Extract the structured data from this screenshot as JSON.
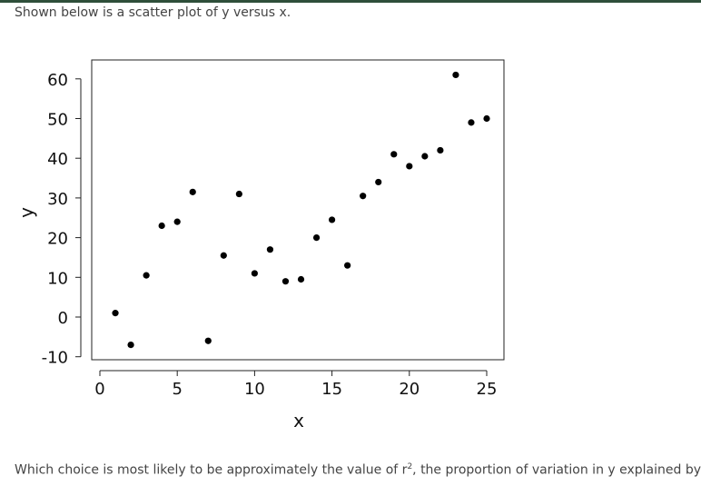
{
  "header": {
    "intro_text": "Shown below is a scatter plot of y versus x."
  },
  "question": {
    "text_before": "Which choice is most likely to be approximately the value of r",
    "superscript": "2",
    "text_after": ", the proportion of variation in y explained by x?"
  },
  "chart_data": {
    "type": "scatter",
    "title": "",
    "xlabel": "x",
    "ylabel": "y",
    "xlim": [
      0,
      25
    ],
    "ylim": [
      -10,
      60
    ],
    "xticks": [
      0,
      5,
      10,
      15,
      20,
      25
    ],
    "yticks": [
      -10,
      0,
      10,
      20,
      30,
      40,
      50,
      60
    ],
    "grid": false,
    "points": [
      {
        "x": 1,
        "y": 1
      },
      {
        "x": 2,
        "y": -7
      },
      {
        "x": 3,
        "y": 10.5
      },
      {
        "x": 4,
        "y": 23
      },
      {
        "x": 5,
        "y": 24
      },
      {
        "x": 6,
        "y": 31.5
      },
      {
        "x": 7,
        "y": -6
      },
      {
        "x": 8,
        "y": 15.5
      },
      {
        "x": 9,
        "y": 31
      },
      {
        "x": 10,
        "y": 11
      },
      {
        "x": 11,
        "y": 17
      },
      {
        "x": 12,
        "y": 9
      },
      {
        "x": 13,
        "y": 9.5
      },
      {
        "x": 14,
        "y": 20
      },
      {
        "x": 15,
        "y": 24.5
      },
      {
        "x": 16,
        "y": 13
      },
      {
        "x": 17,
        "y": 30.5
      },
      {
        "x": 18,
        "y": 34
      },
      {
        "x": 19,
        "y": 41
      },
      {
        "x": 20,
        "y": 38
      },
      {
        "x": 21,
        "y": 40.5
      },
      {
        "x": 22,
        "y": 42
      },
      {
        "x": 23,
        "y": 61
      },
      {
        "x": 24,
        "y": 49
      },
      {
        "x": 25,
        "y": 50
      }
    ]
  }
}
